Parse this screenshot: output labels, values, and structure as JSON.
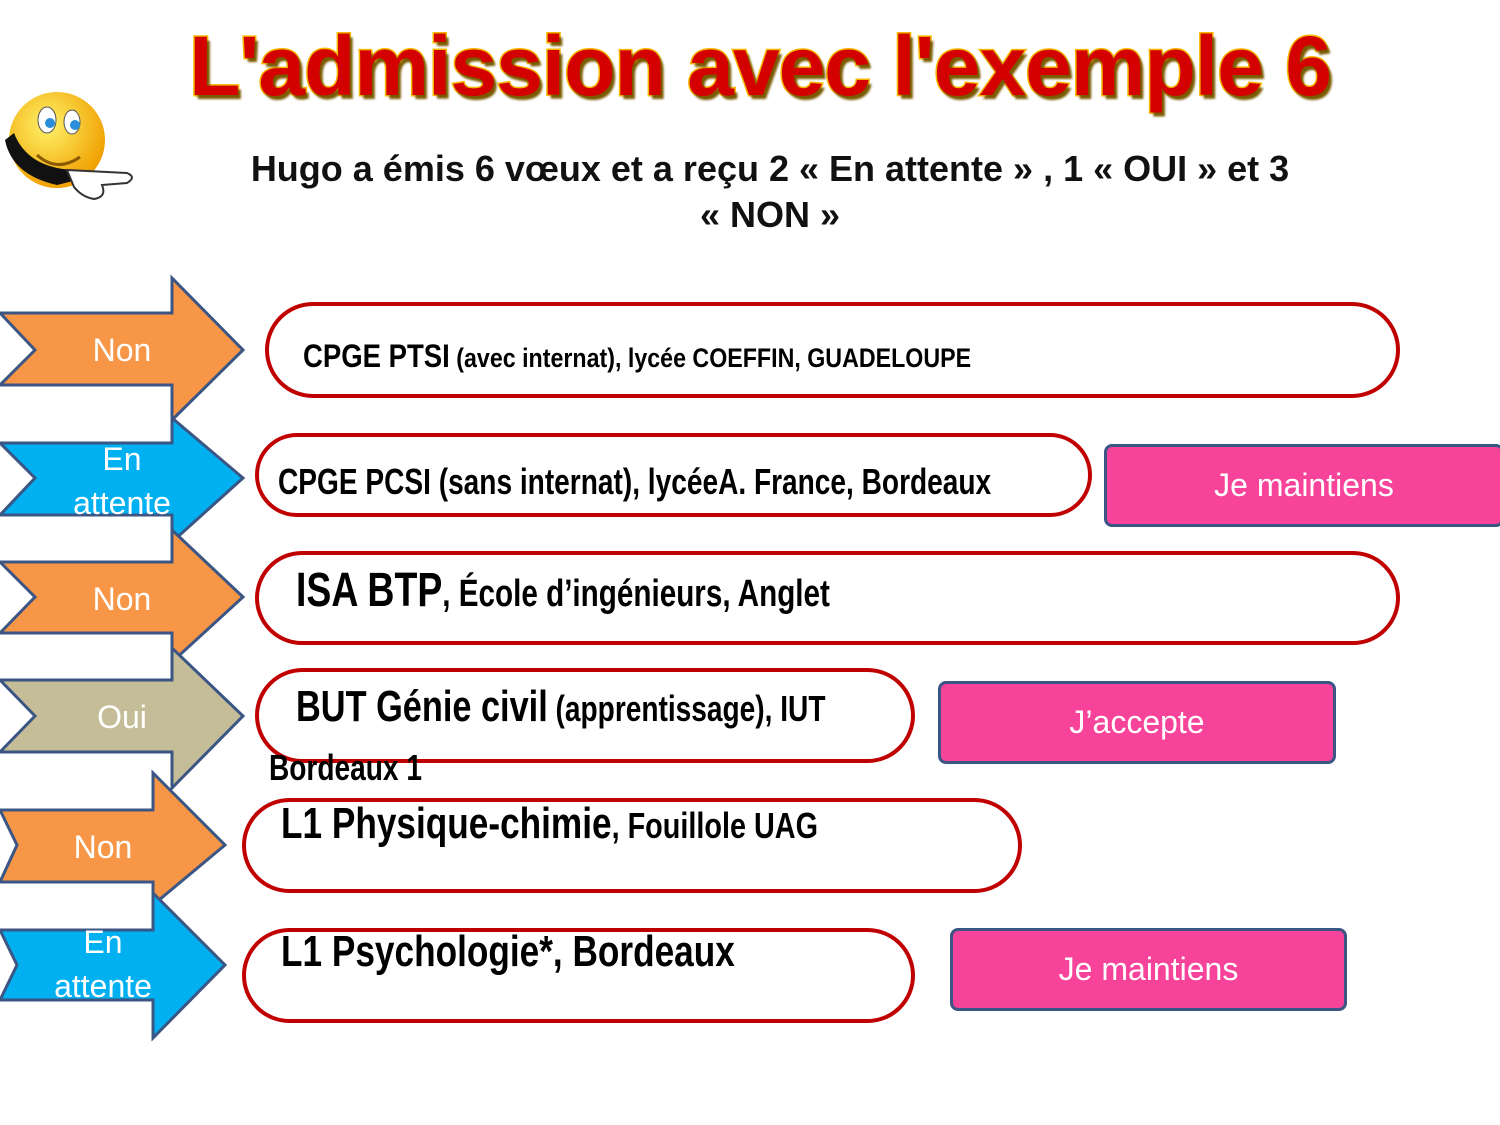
{
  "title": "L'admission avec l'exemple 6",
  "subtitle_line1": "Hugo a émis 6 vœux et a reçu 2 « En attente » , 1 « OUI » et 3",
  "subtitle_line2": "« NON »",
  "colors": {
    "non": "#f79646",
    "attente": "#00b0f0",
    "oui": "#c4bd97",
    "pill_border": "#c00000",
    "button": "#f7439a",
    "arrow_border": "#3b5584"
  },
  "rows": [
    {
      "status": "Non",
      "status_line2": "",
      "strong": "CPGE PTSI",
      "rest": " (avec internat), lycée COEFFIN, GUADELOUPE",
      "action": ""
    },
    {
      "status": "En",
      "status_line2": "attente",
      "strong": "CPGE PCSI (sans internat), lycéeA. France, Bordeaux",
      "rest": "",
      "action": "Je maintiens"
    },
    {
      "status": "Non",
      "status_line2": "",
      "strong": "ISA BTP",
      "rest": ", École d’ingénieurs, Anglet",
      "action": ""
    },
    {
      "status": "Oui",
      "status_line2": "",
      "strong": "BUT Génie civil",
      "rest": " (apprentissage), IUT",
      "rest_line2": "Bordeaux 1",
      "action": "J’accepte"
    },
    {
      "status": "Non",
      "status_line2": "",
      "strong": "L1 Physique-chimie",
      "rest": ", Fouillole UAG",
      "action": ""
    },
    {
      "status": "En",
      "status_line2": "attente",
      "strong": "L1 Psychologie*, Bordeaux",
      "rest": "",
      "action": "Je maintiens"
    }
  ]
}
